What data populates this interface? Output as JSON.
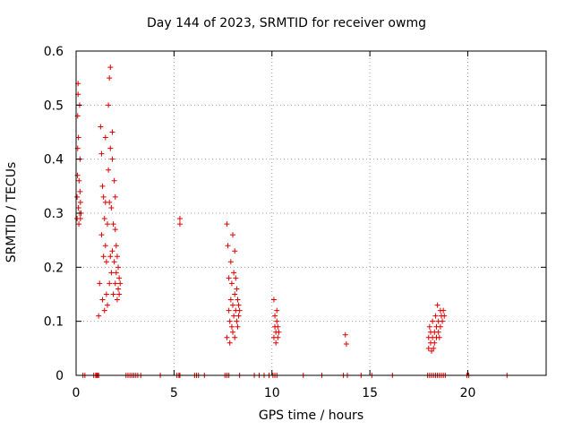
{
  "chart_data": {
    "type": "scatter",
    "title": "Day 144 of 2023, SRMTID for receiver owmg",
    "xlabel": "GPS time / hours",
    "ylabel": "SRMTID / TECUs",
    "xlim": [
      0,
      24
    ],
    "ylim": [
      0,
      0.6
    ],
    "xticks": [
      0,
      5,
      10,
      15,
      20
    ],
    "yticks": [
      0,
      0.1,
      0.2,
      0.3,
      0.4,
      0.5,
      0.6
    ],
    "xtick_labels": [
      "0",
      "5",
      "10",
      "15",
      "20"
    ],
    "ytick_labels": [
      "0",
      "0.1",
      "0.2",
      "0.3",
      "0.4",
      "0.5",
      "0.6"
    ],
    "grid": true,
    "marker": "+",
    "color": "#e00000",
    "series": [
      {
        "name": "SRMTID",
        "x": [
          0.05,
          0.05,
          0.07,
          0.08,
          0.08,
          0.1,
          0.1,
          0.12,
          0.12,
          0.14,
          0.15,
          0.18,
          0.18,
          0.2,
          0.2,
          0.22,
          0.22,
          0.25,
          1.15,
          1.2,
          1.25,
          1.3,
          1.3,
          1.35,
          1.35,
          1.4,
          1.4,
          1.45,
          1.45,
          1.5,
          1.5,
          1.5,
          1.55,
          1.55,
          1.6,
          1.6,
          1.65,
          1.65,
          1.7,
          1.7,
          1.7,
          1.75,
          1.75,
          1.75,
          1.8,
          1.8,
          1.85,
          1.85,
          1.85,
          1.9,
          1.9,
          1.95,
          1.95,
          2.0,
          2.0,
          2.0,
          2.05,
          2.05,
          2.1,
          2.1,
          2.15,
          2.15,
          2.2,
          2.2,
          2.25,
          5.3,
          5.3,
          7.7,
          7.7,
          7.75,
          7.8,
          7.8,
          7.85,
          7.85,
          7.9,
          7.9,
          7.95,
          7.95,
          8.0,
          8.0,
          8.0,
          8.05,
          8.05,
          8.1,
          8.1,
          8.1,
          8.15,
          8.15,
          8.2,
          8.2,
          8.25,
          8.25,
          8.3,
          8.3,
          8.35,
          10.1,
          10.1,
          10.15,
          10.15,
          10.2,
          10.2,
          10.25,
          10.25,
          10.3,
          10.3,
          10.35,
          13.75,
          13.8,
          18.0,
          18.0,
          18.05,
          18.1,
          18.1,
          18.15,
          18.2,
          18.2,
          18.25,
          18.3,
          18.3,
          18.35,
          18.4,
          18.4,
          18.45,
          18.5,
          18.5,
          18.55,
          18.6,
          18.6,
          18.65,
          18.7,
          18.75,
          18.8
        ],
        "y": [
          0.29,
          0.33,
          0.37,
          0.42,
          0.48,
          0.52,
          0.54,
          0.31,
          0.44,
          0.28,
          0.36,
          0.3,
          0.5,
          0.4,
          0.34,
          0.32,
          0.29,
          0.3,
          0.11,
          0.17,
          0.46,
          0.26,
          0.41,
          0.14,
          0.35,
          0.22,
          0.33,
          0.12,
          0.29,
          0.24,
          0.32,
          0.44,
          0.15,
          0.21,
          0.13,
          0.28,
          0.38,
          0.5,
          0.17,
          0.32,
          0.55,
          0.22,
          0.42,
          0.57,
          0.19,
          0.31,
          0.23,
          0.4,
          0.45,
          0.15,
          0.28,
          0.21,
          0.36,
          0.17,
          0.27,
          0.33,
          0.19,
          0.24,
          0.14,
          0.22,
          0.16,
          0.2,
          0.15,
          0.18,
          0.17,
          0.29,
          0.28,
          0.28,
          0.07,
          0.24,
          0.12,
          0.18,
          0.06,
          0.1,
          0.14,
          0.21,
          0.09,
          0.17,
          0.26,
          0.08,
          0.13,
          0.19,
          0.11,
          0.15,
          0.23,
          0.07,
          0.12,
          0.18,
          0.1,
          0.16,
          0.09,
          0.14,
          0.11,
          0.13,
          0.12,
          0.14,
          0.07,
          0.09,
          0.11,
          0.06,
          0.08,
          0.1,
          0.12,
          0.07,
          0.09,
          0.08,
          0.075,
          0.058,
          0.05,
          0.07,
          0.09,
          0.06,
          0.08,
          0.045,
          0.07,
          0.1,
          0.05,
          0.08,
          0.06,
          0.11,
          0.07,
          0.09,
          0.13,
          0.08,
          0.1,
          0.07,
          0.12,
          0.09,
          0.11,
          0.1,
          0.12,
          0.11
        ],
        "zero_x": [
          0.35,
          0.45,
          0.9,
          1.0,
          1.05,
          1.1,
          1.15,
          2.55,
          2.65,
          2.75,
          2.85,
          2.95,
          3.05,
          3.15,
          3.3,
          4.3,
          5.15,
          5.25,
          5.3,
          6.05,
          6.15,
          6.25,
          6.55,
          7.6,
          7.7,
          7.8,
          8.35,
          9.1,
          9.35,
          9.6,
          9.85,
          10.05,
          10.15,
          10.25,
          11.6,
          12.55,
          13.65,
          13.85,
          14.55,
          15.1,
          16.15,
          17.95,
          18.05,
          18.15,
          18.25,
          18.35,
          18.45,
          18.55,
          18.65,
          18.75,
          18.85,
          19.95,
          20.05,
          22.0
        ]
      }
    ]
  }
}
